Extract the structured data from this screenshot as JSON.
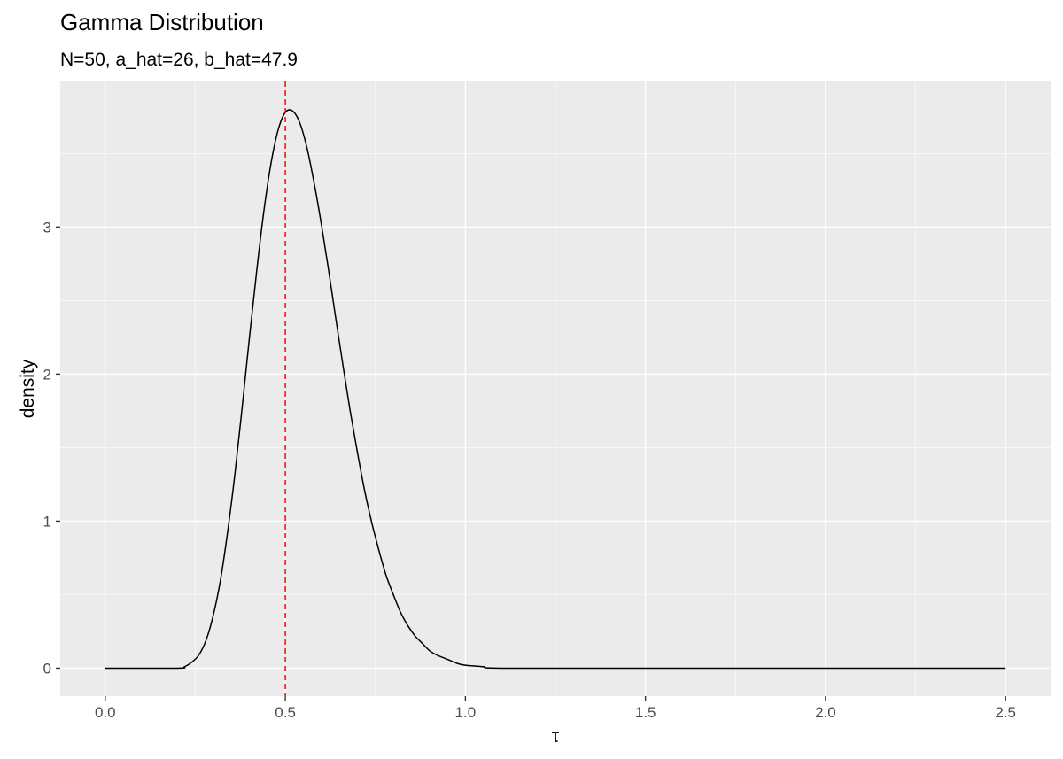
{
  "chart_data": {
    "type": "line",
    "title": "Gamma Distribution",
    "subtitle": "N=50, a_hat=26, b_hat=47.9",
    "xlabel": "τ",
    "ylabel": "density",
    "xlim": [
      -0.125,
      2.625
    ],
    "ylim": [
      -0.19,
      3.99
    ],
    "x_ticks": [
      0.0,
      0.5,
      1.0,
      1.5,
      2.0,
      2.5
    ],
    "x_tick_labels": [
      "0.0",
      "0.5",
      "1.0",
      "1.5",
      "2.0",
      "2.5"
    ],
    "y_ticks": [
      0,
      1,
      2,
      3
    ],
    "y_tick_labels": [
      "0",
      "1",
      "2",
      "3"
    ],
    "grid": true,
    "panel_background": "#ebebeb",
    "series": [
      {
        "color": "#000000",
        "x": [
          0.0,
          0.2,
          0.22,
          0.24,
          0.26,
          0.28,
          0.3,
          0.32,
          0.34,
          0.36,
          0.38,
          0.4,
          0.42,
          0.44,
          0.46,
          0.48,
          0.5,
          0.52,
          0.54,
          0.56,
          0.58,
          0.6,
          0.62,
          0.64,
          0.66,
          0.68,
          0.7,
          0.72,
          0.74,
          0.76,
          0.78,
          0.8,
          0.82,
          0.84,
          0.86,
          0.88,
          0.9,
          0.92,
          0.94,
          0.96,
          0.98,
          1.0,
          1.05,
          1.1,
          1.5,
          2.0,
          2.5
        ],
        "y": [
          0.0,
          0.0,
          0.01,
          0.04,
          0.09,
          0.19,
          0.36,
          0.6,
          0.93,
          1.32,
          1.77,
          2.24,
          2.69,
          3.1,
          3.43,
          3.66,
          3.78,
          3.79,
          3.71,
          3.54,
          3.3,
          3.02,
          2.71,
          2.38,
          2.06,
          1.75,
          1.47,
          1.21,
          0.99,
          0.8,
          0.63,
          0.5,
          0.38,
          0.29,
          0.22,
          0.17,
          0.12,
          0.09,
          0.07,
          0.05,
          0.03,
          0.02,
          0.01,
          0.0,
          0.0,
          0.0,
          0.0
        ]
      }
    ],
    "vlines": [
      {
        "x": 0.5,
        "color": "#ff0000",
        "style": "dashed"
      }
    ]
  }
}
